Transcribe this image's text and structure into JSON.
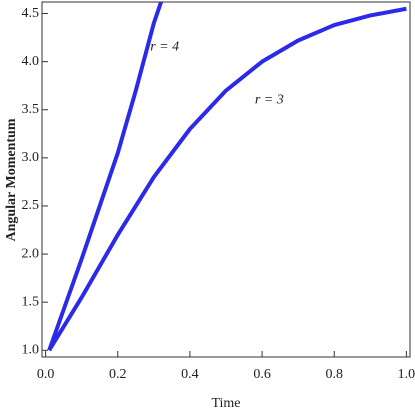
{
  "chart_data": {
    "type": "line",
    "xlabel": "Time",
    "ylabel": "Angular Momentum",
    "xlim": [
      -0.01,
      1.01
    ],
    "ylim": [
      0.93,
      4.62
    ],
    "xticks": [
      {
        "value": 0,
        "label": "0.0"
      },
      0.2,
      0.4,
      0.6,
      0.8,
      {
        "value": 1,
        "label": "1.0"
      }
    ],
    "yticks": [
      {
        "value": 1,
        "label": "1.0"
      },
      1.5,
      {
        "value": 2,
        "label": "2.0"
      },
      2.5,
      {
        "value": 3,
        "label": "3.0"
      },
      3.5,
      {
        "value": 4,
        "label": "4.0"
      },
      4.5
    ],
    "series": [
      {
        "name": "r = 4",
        "color": "#2a2ae8",
        "x": [
          0.01,
          0.1,
          0.2,
          0.25,
          0.3,
          0.32
        ],
        "values": [
          1.0,
          1.95,
          3.05,
          3.7,
          4.4,
          4.62
        ]
      },
      {
        "name": "r = 3",
        "color": "#2a2ae8",
        "x": [
          0.01,
          0.1,
          0.2,
          0.3,
          0.4,
          0.5,
          0.6,
          0.7,
          0.8,
          0.9,
          1.0
        ],
        "values": [
          1.0,
          1.55,
          2.2,
          2.8,
          3.3,
          3.7,
          4.0,
          4.22,
          4.38,
          4.48,
          4.55
        ]
      }
    ],
    "annotations": [
      {
        "series": 0,
        "x": 0.33,
        "y": 4.15
      },
      {
        "series": 1,
        "x": 0.62,
        "y": 3.6
      }
    ]
  }
}
